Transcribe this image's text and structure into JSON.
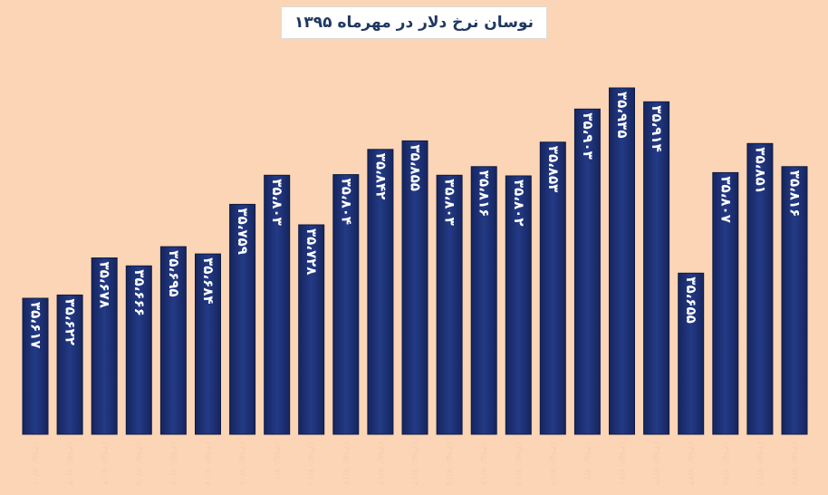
{
  "title": "نوسان نرخ دلار در مهرماه ۱۳۹۵",
  "chart_data": {
    "type": "bar",
    "title": "نوسان نرخ دلار در مهرماه ۱۳۹۵",
    "xlabel": "",
    "ylabel": "",
    "ylim": [
      34000,
      36000
    ],
    "grid": false,
    "legend": "none",
    "bar_color": "#1B2A6B",
    "value_label_color": "#FFFFFF",
    "background": "#FBD5B5",
    "categories": [
      "۱۳۹۵/۰۷/۰۱",
      "۱۳۹۵/۰۷/۰۳",
      "۱۳۹۵/۰۷/۰۴",
      "۱۳۹۵/۰۷/۰۵",
      "۱۳۹۵/۰۷/۰۶",
      "۱۳۹۵/۰۷/۰۷",
      "۱۳۹۵/۰۷/۰۸",
      "۱۳۹۵/۰۷/۱۰",
      "۱۳۹۵/۰۷/۱۱",
      "۱۳۹۵/۰۷/۱۲",
      "۱۳۹۵/۰۷/۱۳",
      "۱۳۹۵/۰۷/۱۴",
      "۱۳۹۵/۰۷/۱۵",
      "۱۳۹۵/۰۷/۱۷",
      "۱۳۹۵/۰۷/۱۸",
      "۱۳۹۵/۰۷/۱۹",
      "۱۳۹۵/۰۷/۲۰",
      "۱۳۹۵/۰۷/۲۱",
      "۱۳۹۵/۰۷/۲۲",
      "۱۳۹۵/۰۷/۲۴",
      "۱۳۹۵/۰۷/۲۵",
      "۱۳۹۵/۰۷/۲۶",
      "۱۳۹۵/۰۷/۲۷"
    ],
    "values": [
      35617,
      35622,
      35678,
      35666,
      35695,
      35684,
      35759,
      35803,
      35728,
      35804,
      35842,
      35855,
      35803,
      35816,
      35802,
      35853,
      35903,
      35935,
      35914,
      35655,
      35807,
      35851,
      35816
    ],
    "labels": [
      "۳۵،۶۱۷",
      "۳۵،۶۲۲",
      "۳۵،۶۷۸",
      "۳۵،۶۶۶",
      "۳۵،۶۹۵",
      "۳۵،۶۸۴",
      "۳۵،۷۵۹",
      "۳۵،۸۰۳",
      "۳۵،۷۲۸",
      "۳۵،۸۰۴",
      "۳۵،۸۴۲",
      "۳۵،۸۵۵",
      "۳۵،۸۰۳",
      "۳۵،۸۱۶",
      "۳۵،۸۰۲",
      "۳۵،۸۵۳",
      "۳۵،۹۰۳",
      "۳۵،۹۳۵",
      "۳۵،۹۱۴",
      "۳۵،۶۵۵",
      "۳۵،۸۰۷",
      "۳۵،۸۵۱",
      "۳۵،۸۱۶"
    ]
  }
}
